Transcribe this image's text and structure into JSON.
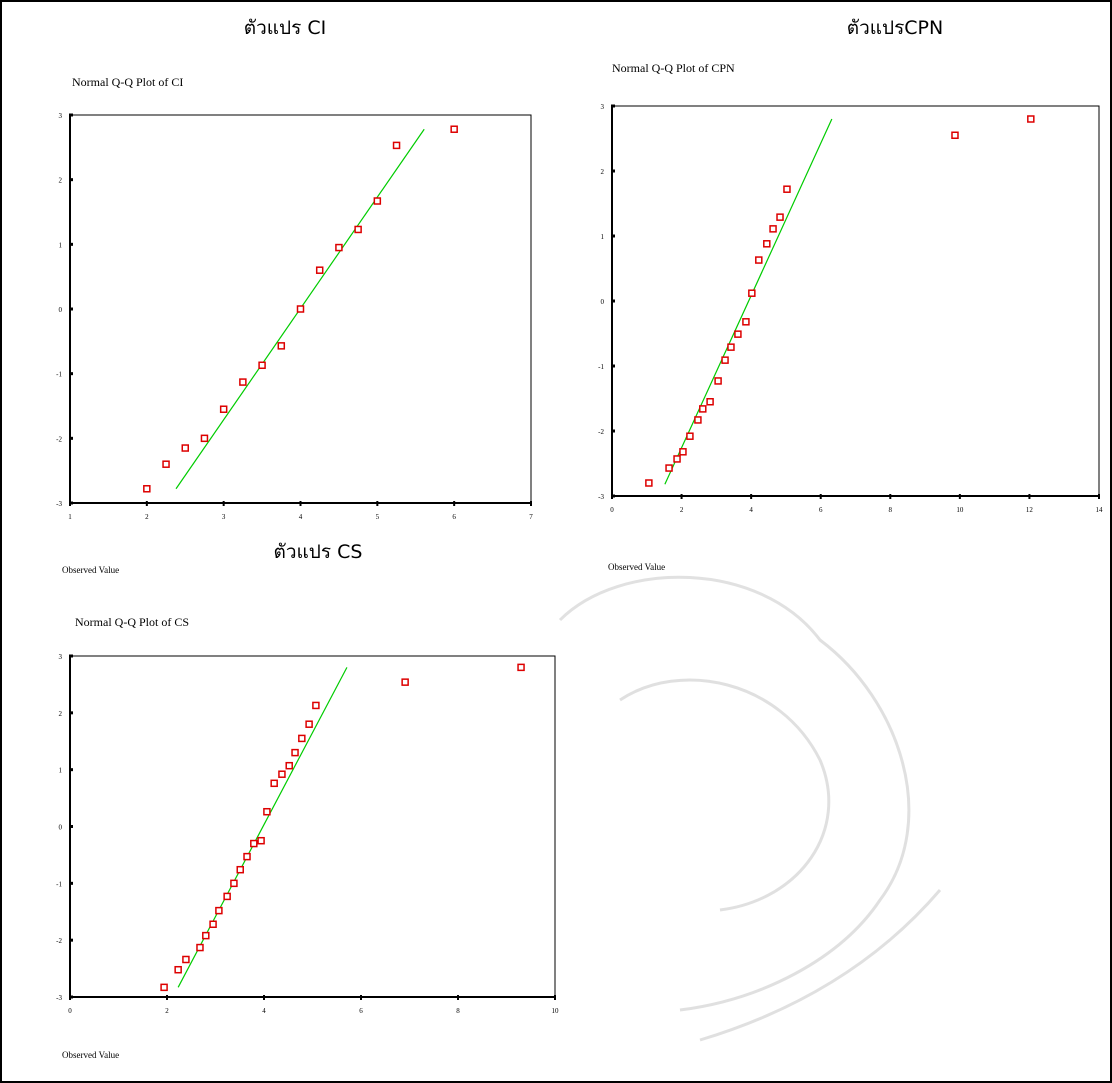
{
  "chart_data": [
    {
      "type": "scatter",
      "heading": "ตัวแปร CI",
      "title": "Normal Q-Q Plot of CI",
      "x_label": "Observed Value",
      "xlim": [
        1,
        7
      ],
      "xticks": [
        1,
        2,
        3,
        4,
        5,
        6,
        7
      ],
      "ylim": [
        -3,
        3
      ],
      "yticks": [
        -3,
        -2,
        -1,
        0,
        1,
        2,
        3
      ],
      "color": "#dd0000",
      "x": [
        2.0,
        2.25,
        2.5,
        2.75,
        3.0,
        3.25,
        3.5,
        3.75,
        4.0,
        4.25,
        4.5,
        4.75,
        5.0,
        5.25,
        6.0
      ],
      "y": [
        -2.78,
        -2.4,
        -2.15,
        -2.0,
        -1.55,
        -1.13,
        -0.87,
        -0.57,
        0.0,
        0.6,
        0.95,
        1.23,
        1.67,
        2.53,
        2.78
      ],
      "line": {
        "color": "#00cc00",
        "x": [
          2.38,
          5.61
        ],
        "y": [
          -2.78,
          2.78
        ]
      }
    },
    {
      "type": "scatter",
      "heading": "ตัวแปรCPN",
      "title": "Normal Q-Q Plot of CPN",
      "x_label": "Observed Value",
      "xlim": [
        0,
        14
      ],
      "xticks": [
        0,
        2,
        4,
        6,
        8,
        10,
        12,
        14
      ],
      "ylim": [
        -3,
        3
      ],
      "yticks": [
        -3,
        -2,
        -1,
        0,
        1,
        2,
        3
      ],
      "color": "#dd0000",
      "x": [
        1.06,
        1.64,
        1.87,
        2.04,
        2.24,
        2.47,
        2.61,
        2.82,
        3.05,
        3.25,
        3.42,
        3.62,
        3.85,
        4.02,
        4.22,
        4.45,
        4.63,
        4.83,
        5.03,
        9.86,
        12.04
      ],
      "y": [
        -2.8,
        -2.57,
        -2.43,
        -2.32,
        -2.08,
        -1.83,
        -1.66,
        -1.55,
        -1.23,
        -0.91,
        -0.71,
        -0.51,
        -0.32,
        0.12,
        0.63,
        0.88,
        1.11,
        1.29,
        1.72,
        2.55,
        2.8
      ],
      "line": {
        "color": "#00cc00",
        "x": [
          1.52,
          6.32
        ],
        "y": [
          -2.82,
          2.8
        ]
      }
    },
    {
      "type": "scatter",
      "heading": "ตัวแปร CS",
      "title": "Normal Q-Q Plot of CS",
      "x_label": "Observed Value",
      "xlim": [
        0,
        10
      ],
      "xticks": [
        0,
        2,
        4,
        6,
        8,
        10
      ],
      "ylim": [
        -3,
        3
      ],
      "yticks": [
        -3,
        -2,
        -1,
        0,
        1,
        2,
        3
      ],
      "color": "#dd0000",
      "x": [
        1.94,
        2.23,
        2.39,
        2.68,
        2.8,
        2.95,
        3.07,
        3.24,
        3.38,
        3.51,
        3.65,
        3.79,
        3.94,
        4.06,
        4.21,
        4.37,
        4.52,
        4.64,
        4.78,
        4.93,
        5.07,
        6.91,
        9.3
      ],
      "y": [
        -2.83,
        -2.52,
        -2.34,
        -2.13,
        -1.92,
        -1.72,
        -1.48,
        -1.23,
        -1.0,
        -0.76,
        -0.53,
        -0.3,
        -0.25,
        0.26,
        0.76,
        0.92,
        1.07,
        1.3,
        1.55,
        1.8,
        2.13,
        2.54,
        2.8
      ],
      "line": {
        "color": "#00cc00",
        "x": [
          2.23,
          5.71
        ],
        "y": [
          -2.83,
          2.8
        ]
      }
    }
  ]
}
